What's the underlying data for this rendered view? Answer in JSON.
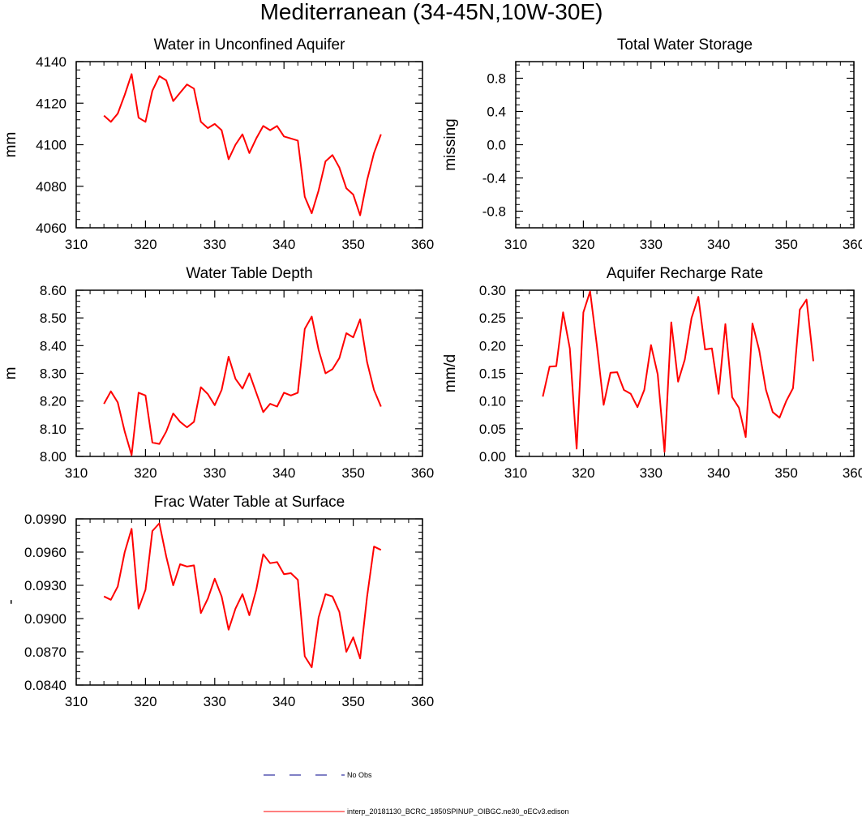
{
  "figure": {
    "title": "Mediterranean (34-45N,10W-30E)",
    "line_color": "#ff0000",
    "obs_color": "#00008b",
    "legend": {
      "obs_label": "No Obs",
      "model_label": "interp_20181130_BCRC_1850SPINUP_OIBGC.ne30_oECv3.edison"
    }
  },
  "chart_data": [
    {
      "id": "unconfined",
      "type": "line",
      "title": "Water in Unconfined Aquifer",
      "ylabel": "mm",
      "xlabel": "",
      "xlim": [
        310,
        360
      ],
      "ylim": [
        4060,
        4140
      ],
      "xticks": [
        310,
        320,
        330,
        340,
        350,
        360
      ],
      "yticks": [
        4060,
        4080,
        4100,
        4120,
        4140
      ],
      "ytick_labels": [
        "4060",
        "4080",
        "4100",
        "4120",
        "4140"
      ],
      "series": [
        {
          "name": "model",
          "x": [
            314,
            315,
            316,
            317,
            318,
            319,
            320,
            321,
            322,
            323,
            324,
            325,
            326,
            327,
            328,
            329,
            330,
            331,
            332,
            333,
            334,
            335,
            336,
            337,
            338,
            339,
            340,
            341,
            342,
            343,
            344,
            345,
            346,
            347,
            348,
            349,
            350,
            351,
            352,
            353,
            354
          ],
          "values": [
            4114,
            4111,
            4115,
            4124,
            4134,
            4113,
            4111,
            4126,
            4133,
            4131,
            4121,
            4125,
            4129,
            4127,
            4111,
            4108,
            4110,
            4107,
            4093,
            4100,
            4105,
            4096,
            4103,
            4109,
            4107,
            4109,
            4104,
            4103,
            4102,
            4075,
            4067,
            4078,
            4092,
            4095,
            4089,
            4079,
            4076,
            4066,
            4083,
            4096,
            4105
          ]
        }
      ]
    },
    {
      "id": "tws",
      "type": "line",
      "title": "Total Water Storage",
      "ylabel": "missing",
      "xlabel": "",
      "xlim": [
        310,
        360
      ],
      "ylim": [
        -1,
        1
      ],
      "xticks": [
        310,
        320,
        330,
        340,
        350,
        360
      ],
      "yticks": [
        -0.8,
        -0.4,
        0.0,
        0.4,
        0.8
      ],
      "ytick_labels": [
        "-0.8",
        "-0.4",
        "0.0",
        "0.4",
        "0.8"
      ],
      "series": []
    },
    {
      "id": "wtd",
      "type": "line",
      "title": "Water Table Depth",
      "ylabel": "m",
      "xlabel": "",
      "xlim": [
        310,
        360
      ],
      "ylim": [
        8.0,
        8.6
      ],
      "xticks": [
        310,
        320,
        330,
        340,
        350,
        360
      ],
      "yticks": [
        8.0,
        8.1,
        8.2,
        8.3,
        8.4,
        8.5,
        8.6
      ],
      "ytick_labels": [
        "8.00",
        "8.10",
        "8.20",
        "8.30",
        "8.40",
        "8.50",
        "8.60"
      ],
      "series": [
        {
          "name": "model",
          "x": [
            314,
            315,
            316,
            317,
            318,
            319,
            320,
            321,
            322,
            323,
            324,
            325,
            326,
            327,
            328,
            329,
            330,
            331,
            332,
            333,
            334,
            335,
            336,
            337,
            338,
            339,
            340,
            341,
            342,
            343,
            344,
            345,
            346,
            347,
            348,
            349,
            350,
            351,
            352,
            353,
            354
          ],
          "values": [
            8.19,
            8.235,
            8.195,
            8.09,
            8.005,
            8.23,
            8.22,
            8.05,
            8.045,
            8.09,
            8.155,
            8.125,
            8.105,
            8.125,
            8.25,
            8.225,
            8.185,
            8.24,
            8.36,
            8.28,
            8.245,
            8.3,
            8.23,
            8.16,
            8.19,
            8.18,
            8.23,
            8.22,
            8.23,
            8.46,
            8.505,
            8.385,
            8.3,
            8.315,
            8.355,
            8.445,
            8.43,
            8.495,
            8.34,
            8.24,
            8.18
          ]
        }
      ]
    },
    {
      "id": "recharge",
      "type": "line",
      "title": "Aquifer Recharge Rate",
      "ylabel": "mm/d",
      "xlabel": "",
      "xlim": [
        310,
        360
      ],
      "ylim": [
        0.0,
        0.3
      ],
      "xticks": [
        310,
        320,
        330,
        340,
        350,
        360
      ],
      "yticks": [
        0.0,
        0.05,
        0.1,
        0.15,
        0.2,
        0.25,
        0.3
      ],
      "ytick_labels": [
        "0.00",
        "0.05",
        "0.10",
        "0.15",
        "0.20",
        "0.25",
        "0.30"
      ],
      "series": [
        {
          "name": "model",
          "x": [
            314,
            315,
            316,
            317,
            318,
            319,
            320,
            321,
            322,
            323,
            324,
            325,
            326,
            327,
            328,
            329,
            330,
            331,
            332,
            333,
            334,
            335,
            336,
            337,
            338,
            339,
            340,
            341,
            342,
            343,
            344,
            345,
            346,
            347,
            348,
            349,
            350,
            351,
            352,
            353,
            354
          ],
          "values": [
            0.108,
            0.162,
            0.163,
            0.26,
            0.195,
            0.014,
            0.26,
            0.298,
            0.2,
            0.093,
            0.151,
            0.152,
            0.12,
            0.113,
            0.089,
            0.12,
            0.201,
            0.148,
            0.008,
            0.242,
            0.135,
            0.175,
            0.25,
            0.288,
            0.193,
            0.195,
            0.113,
            0.239,
            0.107,
            0.088,
            0.035,
            0.24,
            0.192,
            0.12,
            0.08,
            0.07,
            0.1,
            0.123,
            0.265,
            0.283,
            0.172
          ]
        }
      ]
    },
    {
      "id": "frac",
      "type": "line",
      "title": "Frac Water Table at Surface",
      "ylabel": "-",
      "xlabel": "",
      "xlim": [
        310,
        360
      ],
      "ylim": [
        0.084,
        0.099
      ],
      "xticks": [
        310,
        320,
        330,
        340,
        350,
        360
      ],
      "yticks": [
        0.084,
        0.087,
        0.09,
        0.093,
        0.096,
        0.099
      ],
      "ytick_labels": [
        "0.0840",
        "0.0870",
        "0.0900",
        "0.0930",
        "0.0960",
        "0.0990"
      ],
      "series": [
        {
          "name": "model",
          "x": [
            314,
            315,
            316,
            317,
            318,
            319,
            320,
            321,
            322,
            323,
            324,
            325,
            326,
            327,
            328,
            329,
            330,
            331,
            332,
            333,
            334,
            335,
            336,
            337,
            338,
            339,
            340,
            341,
            342,
            343,
            344,
            345,
            346,
            347,
            348,
            349,
            350,
            351,
            352,
            353,
            354
          ],
          "values": [
            0.092,
            0.0917,
            0.0929,
            0.096,
            0.0981,
            0.0909,
            0.0926,
            0.0979,
            0.0986,
            0.0956,
            0.093,
            0.0949,
            0.0947,
            0.0948,
            0.0905,
            0.0918,
            0.0936,
            0.092,
            0.089,
            0.0909,
            0.0922,
            0.0903,
            0.0926,
            0.0958,
            0.095,
            0.0951,
            0.094,
            0.0941,
            0.0935,
            0.0866,
            0.0856,
            0.0901,
            0.0922,
            0.092,
            0.0906,
            0.087,
            0.0883,
            0.0864,
            0.092,
            0.0965,
            0.0962
          ]
        }
      ]
    }
  ]
}
